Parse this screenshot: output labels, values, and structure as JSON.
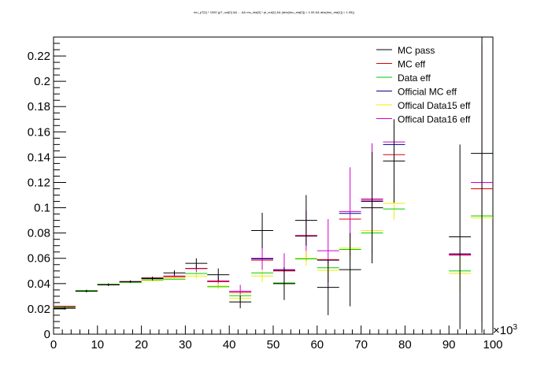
{
  "chart_data": {
    "type": "scatter",
    "title": "mu_pT[1] * 1000 (pT_cut[0] && ... && mu_eta[0] * pt_cut[1] && (abs(tmu_eta[0]) < 1.05 && abs(tmu_eta[1]) < 1.05))",
    "xlabel": "",
    "ylabel": "",
    "xlim": [
      0,
      100
    ],
    "ylim": [
      0,
      0.235
    ],
    "x_exponent_label": "×10",
    "x_exponent_power": "3",
    "x_ticks": [
      0,
      10,
      20,
      30,
      40,
      50,
      60,
      70,
      80,
      90,
      100
    ],
    "x_tick_labels": [
      "0",
      "10",
      "20",
      "30",
      "40",
      "50",
      "60",
      "70",
      "80",
      "90",
      "100"
    ],
    "y_ticks": [
      0,
      0.02,
      0.04,
      0.06,
      0.08,
      0.1,
      0.12,
      0.14,
      0.16,
      0.18,
      0.2,
      0.22
    ],
    "y_tick_labels": [
      "0",
      "0.02",
      "0.04",
      "0.06",
      "0.08",
      "0.1",
      "0.12",
      "0.14",
      "0.16",
      "0.18",
      "0.2",
      "0.22"
    ],
    "grid": false,
    "legend_position": "top-right",
    "bins": [
      [
        0,
        5
      ],
      [
        5,
        10
      ],
      [
        10,
        15
      ],
      [
        15,
        20
      ],
      [
        20,
        25
      ],
      [
        25,
        30
      ],
      [
        30,
        35
      ],
      [
        35,
        40
      ],
      [
        40,
        45
      ],
      [
        45,
        50
      ],
      [
        50,
        55
      ],
      [
        55,
        60
      ],
      [
        60,
        65
      ],
      [
        65,
        70
      ],
      [
        70,
        75
      ],
      [
        75,
        80
      ],
      [
        90,
        95
      ],
      [
        95,
        100
      ]
    ],
    "series": [
      {
        "name": "MC pass",
        "color": "#000000",
        "values": [
          0.0205,
          0.034,
          0.039,
          0.0415,
          0.044,
          0.0485,
          0.056,
          0.047,
          0.0255,
          0.082,
          0.04,
          0.09,
          0.037,
          0.051,
          0.1,
          0.137,
          0.077,
          0.143
        ],
        "err": [
          0.001,
          0.001,
          0.001,
          0.001,
          0.0015,
          0.002,
          0.004,
          0.005,
          0.005,
          0.014,
          0.013,
          0.02,
          0.022,
          0.029,
          0.044,
          0.033,
          0.073,
          0.142
        ]
      },
      {
        "name": "MC eff",
        "color": "#dd0000",
        "values": [
          0.022,
          0.034,
          0.039,
          0.0415,
          0.0445,
          0.0455,
          0.052,
          0.042,
          0.033,
          0.0585,
          0.05,
          0.078,
          0.059,
          0.091,
          0.106,
          0.142,
          0.063,
          0.115
        ],
        "err": [
          0,
          0,
          0,
          0,
          0,
          0,
          0,
          0,
          0,
          0,
          0,
          0,
          0,
          0,
          0,
          0,
          0,
          0
        ]
      },
      {
        "name": "Data eff",
        "color": "#00cc00",
        "values": [
          0.021,
          0.0345,
          0.0395,
          0.041,
          0.043,
          0.0435,
          0.048,
          0.0375,
          0.0305,
          0.0485,
          0.0405,
          0.0595,
          0.0525,
          0.067,
          0.08,
          0.099,
          0.05,
          0.0935
        ],
        "err": [
          0,
          0,
          0,
          0,
          0,
          0,
          0,
          0,
          0,
          0,
          0,
          0,
          0,
          0,
          0,
          0,
          0,
          0
        ]
      },
      {
        "name": "Official MC eff",
        "color": "#000088",
        "values": [
          0.022,
          0.034,
          0.039,
          0.0415,
          0.0445,
          0.0455,
          0.052,
          0.042,
          0.033,
          0.0595,
          0.0505,
          0.0775,
          0.0585,
          0.0955,
          0.105,
          0.15,
          0.0635,
          0.115
        ],
        "err": [
          0,
          0,
          0,
          0,
          0,
          0,
          0,
          0,
          0,
          0,
          0,
          0,
          0,
          0,
          0,
          0,
          0,
          0
        ]
      },
      {
        "name": "Offical Data15 eff",
        "color": "#eeee00",
        "values": [
          0.021,
          0.0345,
          0.0395,
          0.041,
          0.0425,
          0.0445,
          0.046,
          0.038,
          0.0285,
          0.046,
          0.04,
          0.06,
          0.0505,
          0.068,
          0.082,
          0.1035,
          0.048,
          0.092
        ],
        "err": [
          0,
          0.0005,
          0.0005,
          0.0005,
          0.0007,
          0.0012,
          0.002,
          0.0025,
          0.003,
          0.005,
          0.004,
          0.006,
          0.006,
          0.008,
          0.009,
          0.013,
          0.015,
          0.02
        ]
      },
      {
        "name": "Offical Data16 eff",
        "color": "#cc00cc",
        "values": [
          0.021,
          0.0345,
          0.0395,
          0.0415,
          0.044,
          0.046,
          0.052,
          0.0415,
          0.034,
          0.06,
          0.051,
          0.078,
          0.066,
          0.097,
          0.107,
          0.152,
          0.0625,
          0.12
        ],
        "err": [
          0.0005,
          0.0007,
          0.0008,
          0.001,
          0.0012,
          0.0015,
          0.003,
          0.004,
          0.005,
          0.009,
          0.013,
          0.02,
          0.025,
          0.035,
          0.044,
          0.0,
          0.0,
          0.11
        ]
      }
    ]
  }
}
